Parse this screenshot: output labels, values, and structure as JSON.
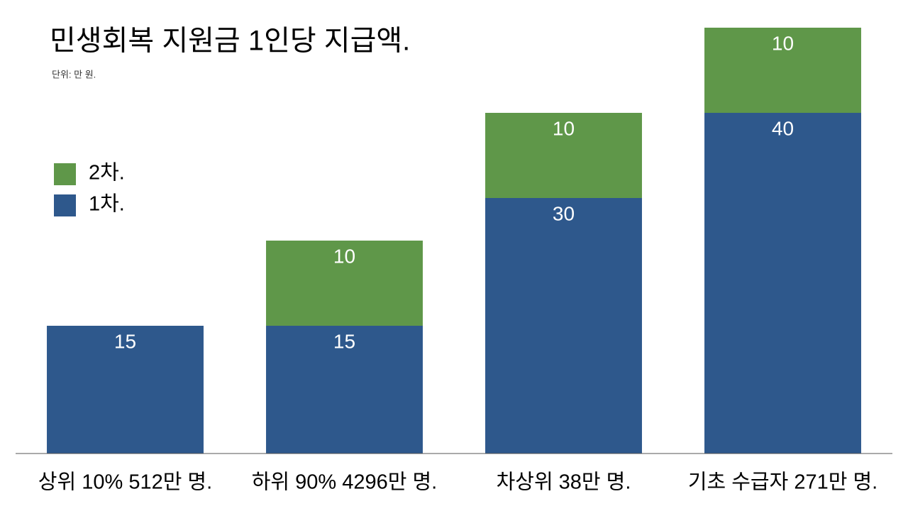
{
  "chart_data": {
    "type": "stacked_bar",
    "title": "민생회복 지원금 1인당 지급액.",
    "subtitle": "단위: 만 원.",
    "categories": [
      "상위 10% 512만 명.",
      "하위 90% 4296만 명.",
      "차상위 38만 명.",
      "기초 수급자 271만 명."
    ],
    "series": [
      {
        "name": "1차.",
        "color": "#2e588c",
        "values": [
          15,
          15,
          30,
          40
        ]
      },
      {
        "name": "2차.",
        "color": "#5f9749",
        "values": [
          null,
          10,
          10,
          10
        ]
      }
    ],
    "ylim": [
      0,
      50
    ],
    "legend": "left"
  }
}
